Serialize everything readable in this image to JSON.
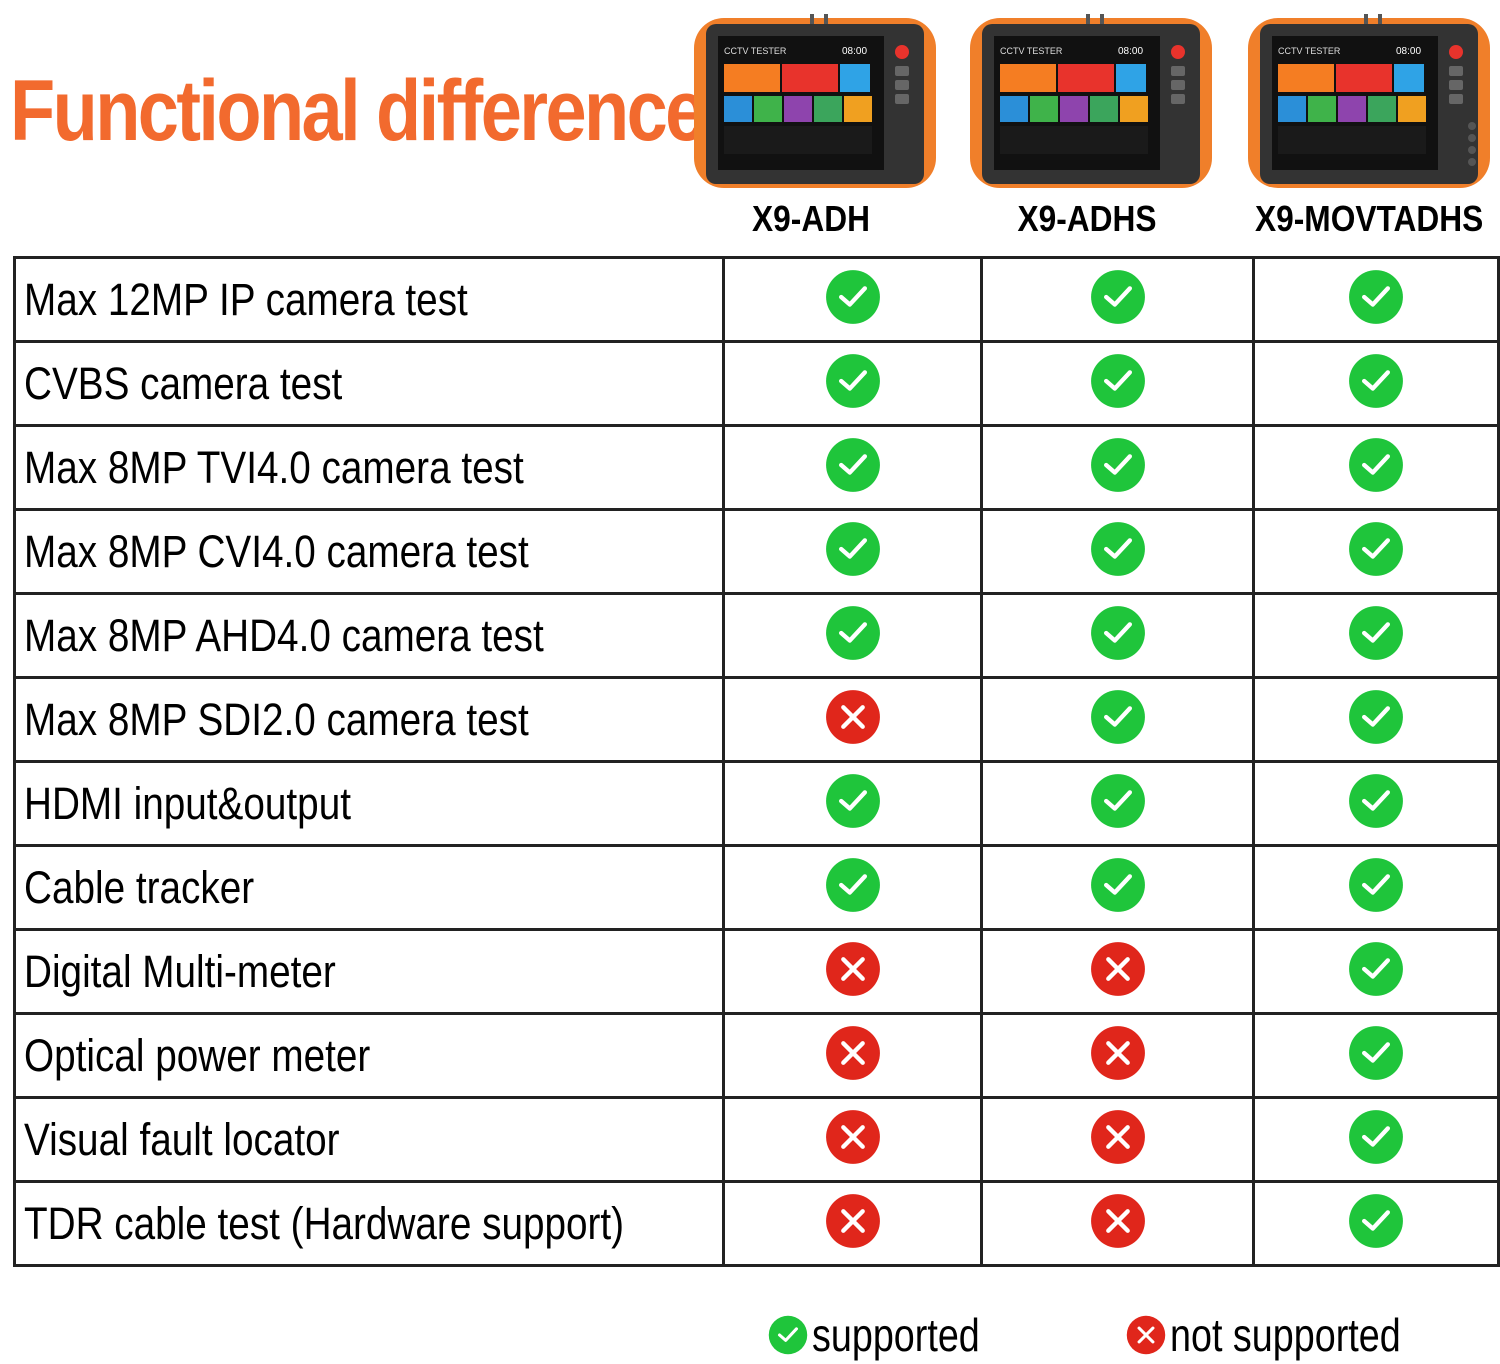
{
  "title": "Functional difference",
  "colors": {
    "title": "#f26a2e",
    "supported": "#1fc53b",
    "not_supported": "#e0261b",
    "device_body": "#f07f2a",
    "device_frame": "#333333"
  },
  "products": [
    {
      "model": "X9-ADH",
      "screen_title": "CCTV TESTER",
      "screen_time": "08:00"
    },
    {
      "model": "X9-ADHS",
      "screen_title": "CCTV TESTER",
      "screen_time": "08:00"
    },
    {
      "model": "X9-MOVTADHS",
      "screen_title": "CCTV TESTER",
      "screen_time": "08:00"
    }
  ],
  "features": [
    {
      "label": "Max 12MP IP camera test",
      "support": [
        true,
        true,
        true
      ]
    },
    {
      "label": "CVBS camera test",
      "support": [
        true,
        true,
        true
      ]
    },
    {
      "label": "Max 8MP TVI4.0 camera test",
      "support": [
        true,
        true,
        true
      ]
    },
    {
      "label": "Max 8MP CVI4.0 camera test",
      "support": [
        true,
        true,
        true
      ]
    },
    {
      "label": "Max 8MP AHD4.0 camera test",
      "support": [
        true,
        true,
        true
      ]
    },
    {
      "label": "Max 8MP SDI2.0 camera test",
      "support": [
        false,
        true,
        true
      ]
    },
    {
      "label": "HDMI input&output",
      "support": [
        true,
        true,
        true
      ]
    },
    {
      "label": "Cable tracker",
      "support": [
        true,
        true,
        true
      ]
    },
    {
      "label": "Digital Multi-meter",
      "support": [
        false,
        false,
        true
      ]
    },
    {
      "label": "Optical power meter",
      "support": [
        false,
        false,
        true
      ]
    },
    {
      "label": "Visual fault locator",
      "support": [
        false,
        false,
        true
      ]
    },
    {
      "label": "TDR cable test (Hardware support)",
      "support": [
        false,
        false,
        true
      ]
    }
  ],
  "legend": {
    "supported_label": "supported",
    "not_supported_label": "not supported"
  }
}
